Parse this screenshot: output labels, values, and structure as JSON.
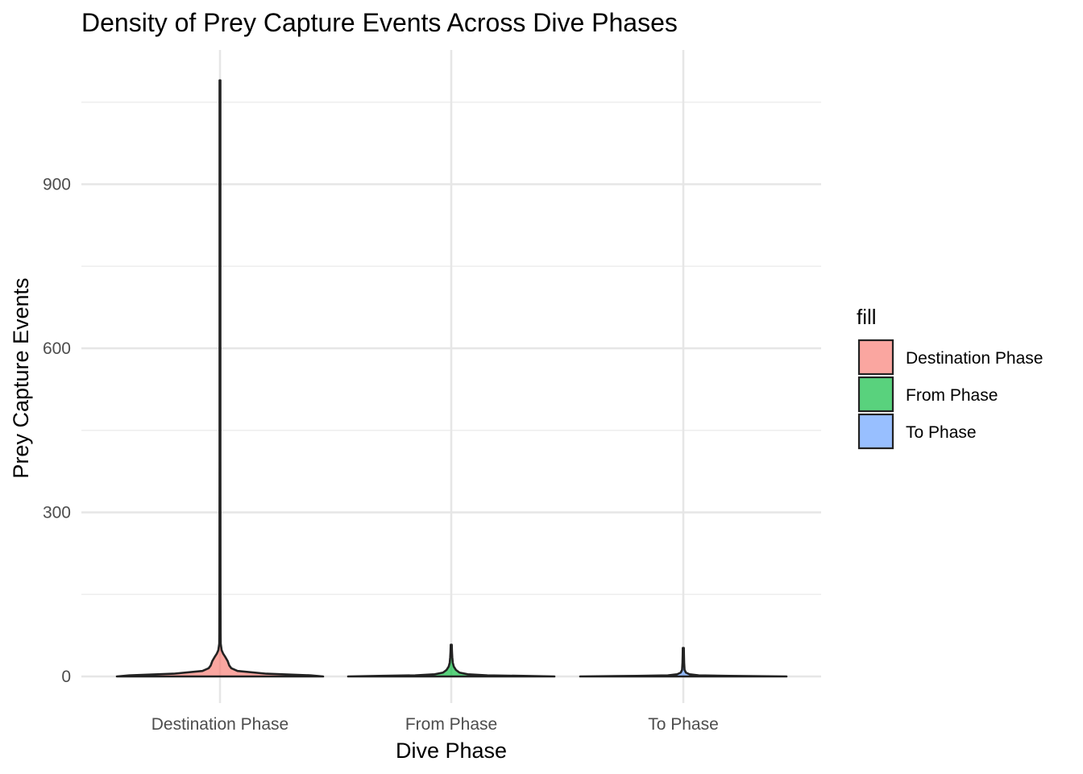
{
  "chart_data": {
    "type": "violin",
    "title": "Density of Prey Capture Events Across Dive Phases",
    "xlabel": "Dive Phase",
    "ylabel": "Prey Capture Events",
    "categories": [
      "Destination Phase",
      "From Phase",
      "To Phase"
    ],
    "ylim": [
      -50,
      1120
    ],
    "yticks": [
      0,
      300,
      600,
      900
    ],
    "y_minor_ticks": [
      150,
      450,
      750,
      1050
    ],
    "grid": true,
    "legend": {
      "title": "fill",
      "placement": "right",
      "entries": [
        {
          "label": "Destination Phase",
          "color": "#F8766D"
        },
        {
          "label": "From Phase",
          "color": "#00BA38"
        },
        {
          "label": "To Phase",
          "color": "#619CFF"
        }
      ]
    },
    "series": [
      {
        "name": "Destination Phase",
        "color": "#F8766D",
        "min": 0,
        "max": 1090,
        "density": [
          [
            0,
            1.0
          ],
          [
            2,
            0.88
          ],
          [
            5,
            0.45
          ],
          [
            10,
            0.17
          ],
          [
            15,
            0.11
          ],
          [
            20,
            0.09
          ],
          [
            28,
            0.075
          ],
          [
            36,
            0.05
          ],
          [
            42,
            0.03
          ],
          [
            48,
            0.016
          ],
          [
            60,
            0.007
          ],
          [
            80,
            0.006
          ],
          [
            150,
            0.005
          ],
          [
            400,
            0.004
          ],
          [
            800,
            0.004
          ],
          [
            1090,
            0.004
          ]
        ]
      },
      {
        "name": "From Phase",
        "color": "#00BA38",
        "min": 0,
        "max": 58,
        "density": [
          [
            0,
            1.0
          ],
          [
            1,
            0.7
          ],
          [
            2,
            0.35
          ],
          [
            4,
            0.16
          ],
          [
            7,
            0.08
          ],
          [
            12,
            0.045
          ],
          [
            18,
            0.025
          ],
          [
            25,
            0.015
          ],
          [
            35,
            0.01
          ],
          [
            45,
            0.007
          ],
          [
            58,
            0.005
          ]
        ]
      },
      {
        "name": "To Phase",
        "color": "#619CFF",
        "min": 0,
        "max": 52,
        "density": [
          [
            0,
            1.0
          ],
          [
            1,
            0.45
          ],
          [
            2,
            0.15
          ],
          [
            4,
            0.06
          ],
          [
            7,
            0.025
          ],
          [
            12,
            0.012
          ],
          [
            25,
            0.008
          ],
          [
            40,
            0.006
          ],
          [
            52,
            0.005
          ]
        ]
      }
    ]
  }
}
